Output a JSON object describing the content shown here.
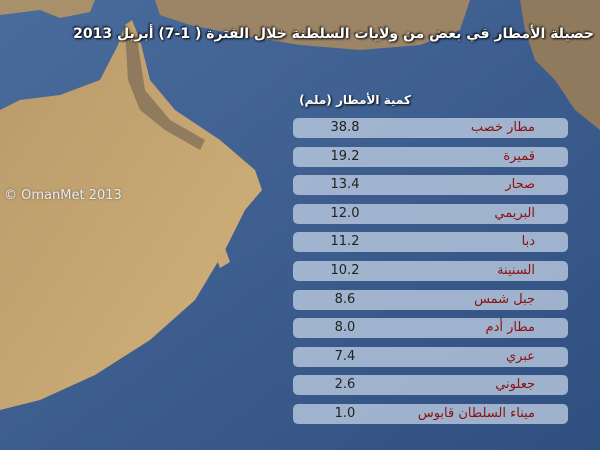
{
  "title": "حصيلة الأمطار في بعض من ولايات السلطنة خلال الفترة ( 1-7) أبريل 2013",
  "watermark": "© OmanMet 2013",
  "table": {
    "header": "كمية الأمطار (ملم)",
    "rows": [
      [
        "مطار خصب",
        "38.8"
      ],
      [
        "قميرة",
        "19.2"
      ],
      [
        "صحار",
        "13.4"
      ],
      [
        "البريمي",
        "12.0"
      ],
      [
        "دبا",
        "11.2"
      ],
      [
        "السنينة",
        "10.2"
      ],
      [
        "جبل شمس",
        "8.6"
      ],
      [
        "مطار أدم",
        "8.0"
      ],
      [
        "عبري",
        "7.4"
      ],
      [
        "جعلوني",
        "2.6"
      ],
      [
        "ميناء السلطان قابوس",
        "1.0"
      ]
    ]
  }
}
